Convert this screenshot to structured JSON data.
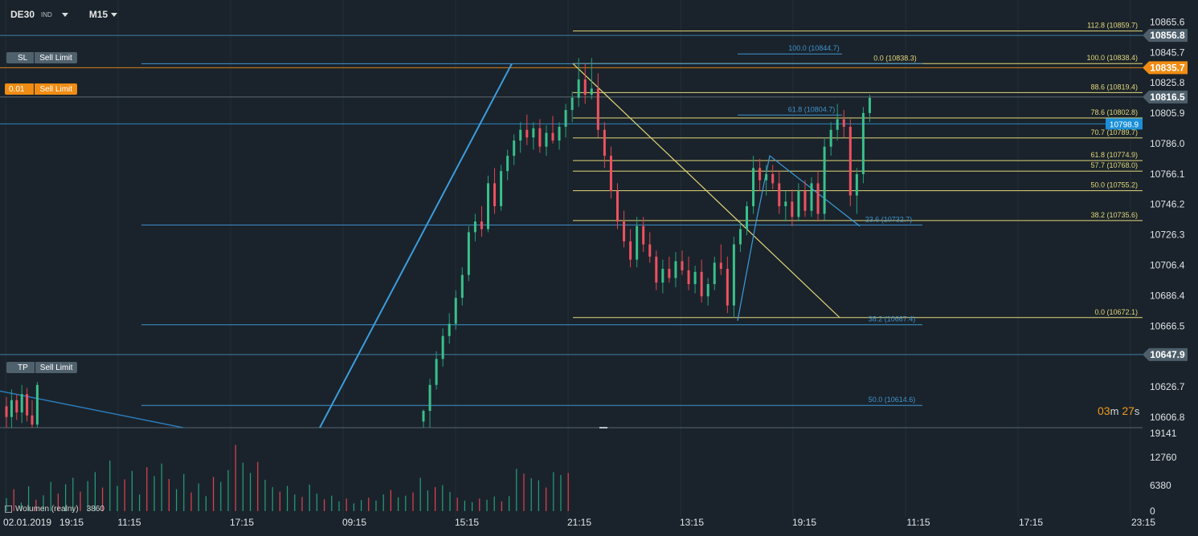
{
  "header": {
    "symbol": "DE30",
    "instrument_type": "IND",
    "timeframe": "M15"
  },
  "orders": [
    {
      "left": "SL",
      "right": "Sell Limit",
      "style": "gray",
      "price": 10856.8
    },
    {
      "left": "0.01",
      "right": "Sell Limit",
      "style": "orange",
      "price": 10835.7
    },
    {
      "left": "TP",
      "right": "Sell Limit",
      "style": "gray",
      "price": 10647.9
    }
  ],
  "timer": {
    "minutes": "03",
    "minutes_unit": "m",
    "seconds": "27",
    "seconds_unit": "s"
  },
  "volume_indicator": {
    "label": "Wolumen (realny)",
    "value": "3860"
  },
  "chart_data": {
    "type": "candlestick",
    "price_axis": {
      "ylim": [
        10600,
        10880
      ],
      "ticks": [
        "10865.6",
        "10845.7",
        "10825.8",
        "10805.9",
        "10786.0",
        "10766.1",
        "10746.2",
        "10726.3",
        "10706.4",
        "10686.4",
        "10666.5",
        "10646.6",
        "10626.7",
        "10606.8"
      ],
      "highlight_labels": [
        {
          "text": "10856.8",
          "price": 10856.8,
          "color": "#4e5f6b"
        },
        {
          "text": "10835.7",
          "price": 10835.7,
          "color": "#f08c13"
        },
        {
          "text": "10816.5",
          "price": 10816.5,
          "color": "#4e5f6b"
        },
        {
          "text": "10798.9",
          "price": 10798.9,
          "color": "#1a8fd8"
        },
        {
          "text": "10647.9",
          "price": 10647.9,
          "color": "#4e5f6b"
        }
      ]
    },
    "time_axis": {
      "labels": [
        "02.01.2019",
        "19:15",
        "11:15",
        "17:15",
        "09:15",
        "15:15",
        "21:15",
        "13:15",
        "19:15",
        "11:15",
        "17:15",
        "23:15"
      ]
    },
    "volume_axis": {
      "ticks": [
        "19141",
        "12760",
        "6380",
        "0"
      ],
      "ylim": [
        0,
        19141
      ]
    },
    "horizontal_lines": [
      {
        "price": 10856.8,
        "color": "#3f7fa8"
      },
      {
        "price": 10835.7,
        "color": "#d9801a"
      },
      {
        "price": 10816.5,
        "color": "#5a6873"
      },
      {
        "price": 10798.9,
        "color": "#2e86c1"
      },
      {
        "price": 10647.9,
        "color": "#3f7fa8"
      }
    ],
    "fib_yellow": {
      "levels": [
        {
          "label": "112.8 (10859.7)",
          "price": 10859.7
        },
        {
          "label": "100.0 (10838.4)",
          "price": 10838.4
        },
        {
          "label": "88.6 (10819.4)",
          "price": 10819.4
        },
        {
          "label": "78.6 (10802.8)",
          "price": 10802.8
        },
        {
          "label": "70.7 (10789.7)",
          "price": 10789.7
        },
        {
          "label": "61.8 (10774.9)",
          "price": 10774.9
        },
        {
          "label": "57.7 (10768.0)",
          "price": 10768.0
        },
        {
          "label": "50.0 (10755.2)",
          "price": 10755.2
        },
        {
          "label": "38.2 (10735.6)",
          "price": 10735.6
        },
        {
          "label": "0.0 (10672.1)",
          "price": 10672.1
        }
      ],
      "extra_price": 10885.0
    },
    "fib_blue": {
      "levels": [
        {
          "label": "100.0 (10844.7)",
          "price": 10844.7
        },
        {
          "label": "0.0 (10838.3)",
          "price": 10838.3
        },
        {
          "label": "61.8 (10804.7)",
          "price": 10804.7
        },
        {
          "label": "23.6 (10732.7)",
          "price": 10732.7
        },
        {
          "label": "38.2 (10667.4)",
          "price": 10667.4
        },
        {
          "label": "50.0 (10614.6)",
          "price": 10614.6
        }
      ],
      "unlabeled_prices": [
        10838.3,
        10732.7,
        10667.4
      ]
    },
    "candles": [
      {
        "o": 10614,
        "h": 10620,
        "l": 10600,
        "c": 10607
      },
      {
        "o": 10607,
        "h": 10625,
        "l": 10600,
        "c": 10618
      },
      {
        "o": 10618,
        "h": 10622,
        "l": 10605,
        "c": 10610
      },
      {
        "o": 10610,
        "h": 10628,
        "l": 10603,
        "c": 10622
      },
      {
        "o": 10622,
        "h": 10626,
        "l": 10604,
        "c": 10608
      },
      {
        "o": 10608,
        "h": 10618,
        "l": 10600,
        "c": 10602
      },
      {
        "o": 10602,
        "h": 10630,
        "l": 10600,
        "c": 10628
      },
      {
        "o": 10604,
        "h": 10612,
        "l": 10600,
        "c": 10611
      },
      {
        "o": 10611,
        "h": 10632,
        "l": 10600,
        "c": 10628
      },
      {
        "o": 10628,
        "h": 10650,
        "l": 10625,
        "c": 10645
      },
      {
        "o": 10645,
        "h": 10665,
        "l": 10640,
        "c": 10660
      },
      {
        "o": 10660,
        "h": 10675,
        "l": 10655,
        "c": 10668
      },
      {
        "o": 10668,
        "h": 10690,
        "l": 10664,
        "c": 10685
      },
      {
        "o": 10685,
        "h": 10705,
        "l": 10680,
        "c": 10700
      },
      {
        "o": 10700,
        "h": 10732,
        "l": 10696,
        "c": 10728
      },
      {
        "o": 10728,
        "h": 10740,
        "l": 10722,
        "c": 10735
      },
      {
        "o": 10735,
        "h": 10745,
        "l": 10725,
        "c": 10730
      },
      {
        "o": 10730,
        "h": 10765,
        "l": 10728,
        "c": 10760
      },
      {
        "o": 10760,
        "h": 10770,
        "l": 10740,
        "c": 10745
      },
      {
        "o": 10745,
        "h": 10772,
        "l": 10742,
        "c": 10768
      },
      {
        "o": 10768,
        "h": 10782,
        "l": 10762,
        "c": 10778
      },
      {
        "o": 10778,
        "h": 10792,
        "l": 10772,
        "c": 10788
      },
      {
        "o": 10788,
        "h": 10800,
        "l": 10780,
        "c": 10795
      },
      {
        "o": 10795,
        "h": 10805,
        "l": 10785,
        "c": 10790
      },
      {
        "o": 10790,
        "h": 10800,
        "l": 10782,
        "c": 10796
      },
      {
        "o": 10796,
        "h": 10802,
        "l": 10780,
        "c": 10784
      },
      {
        "o": 10784,
        "h": 10798,
        "l": 10778,
        "c": 10793
      },
      {
        "o": 10793,
        "h": 10804,
        "l": 10786,
        "c": 10788
      },
      {
        "o": 10788,
        "h": 10800,
        "l": 10782,
        "c": 10797
      },
      {
        "o": 10797,
        "h": 10812,
        "l": 10790,
        "c": 10808
      },
      {
        "o": 10808,
        "h": 10820,
        "l": 10800,
        "c": 10816
      },
      {
        "o": 10816,
        "h": 10842,
        "l": 10810,
        "c": 10828
      },
      {
        "o": 10828,
        "h": 10838,
        "l": 10812,
        "c": 10818
      },
      {
        "o": 10818,
        "h": 10842,
        "l": 10815,
        "c": 10822
      },
      {
        "o": 10822,
        "h": 10832,
        "l": 10790,
        "c": 10795
      },
      {
        "o": 10795,
        "h": 10800,
        "l": 10770,
        "c": 10778
      },
      {
        "o": 10778,
        "h": 10784,
        "l": 10750,
        "c": 10755
      },
      {
        "o": 10755,
        "h": 10760,
        "l": 10730,
        "c": 10735
      },
      {
        "o": 10735,
        "h": 10742,
        "l": 10718,
        "c": 10722
      },
      {
        "o": 10722,
        "h": 10730,
        "l": 10705,
        "c": 10710
      },
      {
        "o": 10710,
        "h": 10738,
        "l": 10705,
        "c": 10732
      },
      {
        "o": 10732,
        "h": 10738,
        "l": 10715,
        "c": 10720
      },
      {
        "o": 10720,
        "h": 10728,
        "l": 10708,
        "c": 10712
      },
      {
        "o": 10712,
        "h": 10716,
        "l": 10690,
        "c": 10695
      },
      {
        "o": 10695,
        "h": 10710,
        "l": 10688,
        "c": 10704
      },
      {
        "o": 10704,
        "h": 10712,
        "l": 10695,
        "c": 10698
      },
      {
        "o": 10698,
        "h": 10715,
        "l": 10692,
        "c": 10709
      },
      {
        "o": 10709,
        "h": 10716,
        "l": 10700,
        "c": 10703
      },
      {
        "o": 10703,
        "h": 10712,
        "l": 10690,
        "c": 10694
      },
      {
        "o": 10694,
        "h": 10706,
        "l": 10688,
        "c": 10702
      },
      {
        "o": 10702,
        "h": 10710,
        "l": 10682,
        "c": 10686
      },
      {
        "o": 10686,
        "h": 10698,
        "l": 10680,
        "c": 10694
      },
      {
        "o": 10694,
        "h": 10712,
        "l": 10690,
        "c": 10708
      },
      {
        "o": 10708,
        "h": 10720,
        "l": 10700,
        "c": 10704
      },
      {
        "o": 10704,
        "h": 10712,
        "l": 10675,
        "c": 10680
      },
      {
        "o": 10680,
        "h": 10725,
        "l": 10672,
        "c": 10720
      },
      {
        "o": 10720,
        "h": 10735,
        "l": 10715,
        "c": 10730
      },
      {
        "o": 10730,
        "h": 10748,
        "l": 10726,
        "c": 10745
      },
      {
        "o": 10745,
        "h": 10778,
        "l": 10740,
        "c": 10770
      },
      {
        "o": 10770,
        "h": 10776,
        "l": 10755,
        "c": 10762
      },
      {
        "o": 10762,
        "h": 10772,
        "l": 10752,
        "c": 10766
      },
      {
        "o": 10766,
        "h": 10772,
        "l": 10756,
        "c": 10760
      },
      {
        "o": 10760,
        "h": 10768,
        "l": 10740,
        "c": 10745
      },
      {
        "o": 10745,
        "h": 10755,
        "l": 10735,
        "c": 10748
      },
      {
        "o": 10748,
        "h": 10756,
        "l": 10732,
        "c": 10738
      },
      {
        "o": 10738,
        "h": 10760,
        "l": 10735,
        "c": 10755
      },
      {
        "o": 10755,
        "h": 10762,
        "l": 10738,
        "c": 10742
      },
      {
        "o": 10742,
        "h": 10764,
        "l": 10738,
        "c": 10760
      },
      {
        "o": 10760,
        "h": 10768,
        "l": 10735,
        "c": 10740
      },
      {
        "o": 10740,
        "h": 10790,
        "l": 10736,
        "c": 10784
      },
      {
        "o": 10784,
        "h": 10800,
        "l": 10778,
        "c": 10795
      },
      {
        "o": 10795,
        "h": 10812,
        "l": 10788,
        "c": 10802
      },
      {
        "o": 10802,
        "h": 10808,
        "l": 10790,
        "c": 10797
      },
      {
        "o": 10797,
        "h": 10802,
        "l": 10745,
        "c": 10752
      },
      {
        "o": 10752,
        "h": 10770,
        "l": 10740,
        "c": 10766
      },
      {
        "o": 10766,
        "h": 10810,
        "l": 10760,
        "c": 10806
      },
      {
        "o": 10806,
        "h": 10818,
        "l": 10800,
        "c": 10816
      }
    ],
    "volumes": [
      3200,
      5400,
      2100,
      6100,
      2800,
      3900,
      7200,
      4300,
      6600,
      8200,
      4800,
      7400,
      9600,
      5800,
      12400,
      6200,
      7800,
      9900,
      4100,
      10800,
      8600,
      11700,
      7900,
      5400,
      9100,
      4600,
      6800,
      3700,
      8400,
      7200,
      10100,
      16300,
      11900,
      9400,
      12100,
      7700,
      5900,
      4800,
      6200,
      4100,
      3500,
      6500,
      4300,
      2900,
      3800,
      2400,
      3100,
      1900,
      2700,
      3300,
      2600,
      4100,
      5200,
      3400,
      3800,
      4600,
      8200,
      5100,
      5900,
      6400,
      4700,
      3300,
      2600,
      2200,
      3100,
      2800,
      3600,
      2400,
      3700,
      10400,
      9200,
      8100,
      7600,
      5800,
      9600,
      8900,
      9400
    ]
  }
}
